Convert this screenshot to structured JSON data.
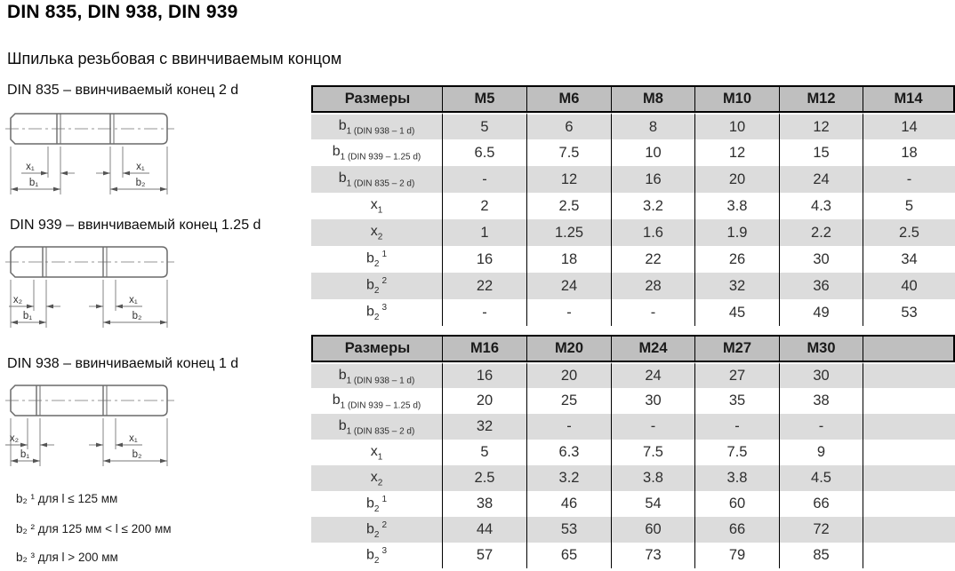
{
  "page": {
    "title": "DIN 835, DIN 938, DIN 939",
    "subtitle": "Шпилька резьбовая с ввинчиваемым концом"
  },
  "theme": {
    "header_bg": "#bfbfbf",
    "row_alt_bg": "#dcdcdc",
    "border": "#000000",
    "text": "#2e2e2e",
    "header_text": "#1a1a1a"
  },
  "diagrams": [
    {
      "caption": "DIN 835 – ввинчиваемый конец 2 d",
      "dim_x_left": "x₁",
      "dim_x_right": "x₁",
      "dim_b_left": "b₁",
      "dim_b_right": "b₂"
    },
    {
      "caption": "DIN 939 – ввинчиваемый конец 1.25 d",
      "dim_x_left": "x₂",
      "dim_x_right": "x₁",
      "dim_b_left": "b₁",
      "dim_b_right": "b₂"
    },
    {
      "caption": "DIN 938 – ввинчиваемый конец 1 d",
      "dim_x_left": "x₂",
      "dim_x_right": "x₁",
      "dim_b_left": "b₁",
      "dim_b_right": "b₂"
    }
  ],
  "tables": [
    {
      "columns": [
        "Размеры",
        "M5",
        "M6",
        "M8",
        "M10",
        "M12",
        "M14"
      ],
      "rows": [
        {
          "label": {
            "base": "b",
            "sub": "1 (DIN 938 – 1 d)"
          },
          "values": [
            "5",
            "6",
            "8",
            "10",
            "12",
            "14"
          ]
        },
        {
          "label": {
            "base": "b",
            "sub": "1 (DIN 939 – 1.25 d)"
          },
          "values": [
            "6.5",
            "7.5",
            "10",
            "12",
            "15",
            "18"
          ]
        },
        {
          "label": {
            "base": "b",
            "sub": "1 (DIN 835 – 2 d)"
          },
          "values": [
            "-",
            "12",
            "16",
            "20",
            "24",
            "-"
          ]
        },
        {
          "label": {
            "base": "x",
            "sub": "1"
          },
          "values": [
            "2",
            "2.5",
            "3.2",
            "3.8",
            "4.3",
            "5"
          ]
        },
        {
          "label": {
            "base": "x",
            "sub": "2"
          },
          "values": [
            "1",
            "1.25",
            "1.6",
            "1.9",
            "2.2",
            "2.5"
          ]
        },
        {
          "label": {
            "base": "b",
            "sub": "2",
            "sup": "1"
          },
          "values": [
            "16",
            "18",
            "22",
            "26",
            "30",
            "34"
          ]
        },
        {
          "label": {
            "base": "b",
            "sub": "2",
            "sup": "2"
          },
          "values": [
            "22",
            "24",
            "28",
            "32",
            "36",
            "40"
          ]
        },
        {
          "label": {
            "base": "b",
            "sub": "2",
            "sup": "3"
          },
          "values": [
            "-",
            "-",
            "-",
            "45",
            "49",
            "53"
          ]
        }
      ]
    },
    {
      "columns": [
        "Размеры",
        "M16",
        "M20",
        "M24",
        "M27",
        "M30",
        ""
      ],
      "rows": [
        {
          "label": {
            "base": "b",
            "sub": "1 (DIN 938 – 1 d)"
          },
          "values": [
            "16",
            "20",
            "24",
            "27",
            "30",
            ""
          ]
        },
        {
          "label": {
            "base": "b",
            "sub": "1 (DIN 939 – 1.25 d)"
          },
          "values": [
            "20",
            "25",
            "30",
            "35",
            "38",
            ""
          ]
        },
        {
          "label": {
            "base": "b",
            "sub": "1 (DIN 835 – 2 d)"
          },
          "values": [
            "32",
            "-",
            "-",
            "-",
            "-",
            ""
          ]
        },
        {
          "label": {
            "base": "x",
            "sub": "1"
          },
          "values": [
            "5",
            "6.3",
            "7.5",
            "7.5",
            "9",
            ""
          ]
        },
        {
          "label": {
            "base": "x",
            "sub": "2"
          },
          "values": [
            "2.5",
            "3.2",
            "3.8",
            "3.8",
            "4.5",
            ""
          ]
        },
        {
          "label": {
            "base": "b",
            "sub": "2",
            "sup": "1"
          },
          "values": [
            "38",
            "46",
            "54",
            "60",
            "66",
            ""
          ]
        },
        {
          "label": {
            "base": "b",
            "sub": "2",
            "sup": "2"
          },
          "values": [
            "44",
            "53",
            "60",
            "66",
            "72",
            ""
          ]
        },
        {
          "label": {
            "base": "b",
            "sub": "2",
            "sup": "3"
          },
          "values": [
            "57",
            "65",
            "73",
            "79",
            "85",
            ""
          ]
        }
      ]
    }
  ],
  "footnotes": [
    "b₂ ¹ для l ≤ 125 мм",
    "b₂ ² для 125 мм < l ≤ 200 мм",
    "b₂ ³ для l > 200 мм"
  ]
}
